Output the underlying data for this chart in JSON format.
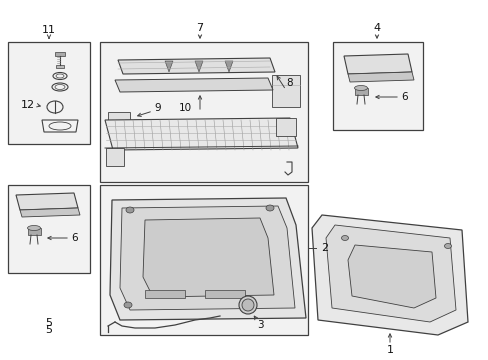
{
  "bg_color": "#ffffff",
  "line_color": "#404040",
  "box_bg": "#f2f2f2",
  "part_bg": "#e0e0e0",
  "part_dark": "#c8c8c8",
  "grid_color": "#888888"
}
